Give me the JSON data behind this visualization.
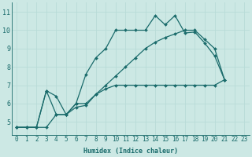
{
  "xlabel": "Humidex (Indice chaleur)",
  "bg_color": "#cce8e4",
  "grid_color": "#b0d8d4",
  "line_color": "#1a6b6b",
  "xlim": [
    -0.5,
    23.5
  ],
  "ylim": [
    4.3,
    11.5
  ],
  "xticks": [
    0,
    1,
    2,
    3,
    4,
    5,
    6,
    7,
    8,
    9,
    10,
    11,
    12,
    13,
    14,
    15,
    16,
    17,
    18,
    19,
    20,
    21,
    22,
    23
  ],
  "yticks": [
    5,
    6,
    7,
    8,
    9,
    10,
    11
  ],
  "s1x": [
    0,
    1,
    2,
    3,
    4,
    5,
    6,
    7,
    8,
    9,
    10,
    11,
    12,
    13,
    14,
    15,
    16,
    17,
    18,
    19,
    20,
    21
  ],
  "s1y": [
    4.7,
    4.7,
    4.7,
    6.7,
    6.4,
    5.4,
    6.0,
    7.6,
    8.5,
    9.0,
    10.0,
    10.0,
    10.0,
    10.0,
    10.8,
    10.3,
    10.8,
    9.85,
    9.9,
    9.3,
    8.6,
    7.3
  ],
  "s2x": [
    0,
    1,
    2,
    3,
    4,
    5,
    6,
    7,
    8,
    9,
    10,
    11,
    12,
    13,
    14,
    15,
    16,
    17,
    18,
    19,
    20,
    21
  ],
  "s2y": [
    4.7,
    4.7,
    4.7,
    6.7,
    5.4,
    5.4,
    6.0,
    6.0,
    6.5,
    6.8,
    7.0,
    7.0,
    7.0,
    7.0,
    7.0,
    7.0,
    7.0,
    7.0,
    7.0,
    7.0,
    7.0,
    7.3
  ],
  "s3x": [
    0,
    1,
    2,
    3,
    4,
    5,
    6,
    7,
    8,
    9,
    10,
    11,
    12,
    13,
    14,
    15,
    16,
    17,
    18,
    19,
    20,
    21
  ],
  "s3y": [
    4.7,
    4.7,
    4.7,
    4.7,
    5.4,
    5.4,
    5.8,
    5.9,
    6.5,
    7.0,
    7.5,
    8.0,
    8.5,
    9.0,
    9.35,
    9.6,
    9.8,
    10.0,
    10.0,
    9.5,
    9.0,
    7.3
  ],
  "marker_size": 2.0,
  "line_width": 0.9,
  "tick_fontsize": 5.5,
  "xlabel_fontsize": 6.0
}
